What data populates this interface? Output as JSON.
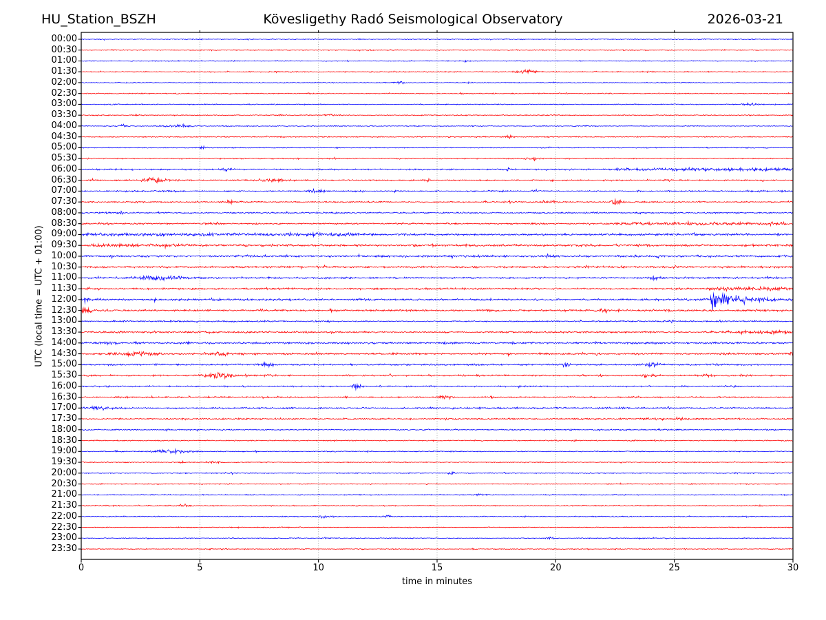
{
  "header": {
    "station": "HU_Station_BSZH",
    "observatory": "Kövesligethy Radó Seismological Observatory",
    "date": "2026-03-21"
  },
  "chart_data": {
    "type": "line",
    "subtype": "helicorder-seismogram-drum-record",
    "title": "HU_Station_BSZH — Kövesligethy Radó Seismological Observatory — 2026-03-21",
    "xlabel": "time in minutes",
    "ylabel": "UTC (local time = UTC + 01:00)",
    "x_ticks": [
      0,
      5,
      10,
      15,
      20,
      25,
      30
    ],
    "x_range": [
      0,
      30
    ],
    "grid": "dotted vertical gridlines at 5-minute intervals",
    "minutes_per_row": 30,
    "colors": {
      "even_row_trace": "#0000ff",
      "odd_row_trace": "#ff0000",
      "grid": "#999999",
      "frame": "#000000"
    },
    "rows": [
      {
        "time": "00:00",
        "color": "#0000ff",
        "noise": 1.0,
        "events": []
      },
      {
        "time": "00:30",
        "color": "#ff0000",
        "noise": 1.0,
        "events": []
      },
      {
        "time": "01:00",
        "color": "#0000ff",
        "noise": 0.9,
        "events": []
      },
      {
        "time": "01:30",
        "color": "#ff0000",
        "noise": 1.0,
        "events": [
          [
            18.3,
            19.3,
            2.6,
            "burst"
          ]
        ]
      },
      {
        "time": "02:00",
        "color": "#0000ff",
        "noise": 0.9,
        "events": [
          [
            13.1,
            13.7,
            1.6,
            "burst"
          ]
        ]
      },
      {
        "time": "02:30",
        "color": "#ff0000",
        "noise": 1.0,
        "events": []
      },
      {
        "time": "03:00",
        "color": "#0000ff",
        "noise": 0.9,
        "events": [
          [
            27.7,
            28.7,
            1.6,
            "burst"
          ]
        ]
      },
      {
        "time": "03:30",
        "color": "#ff0000",
        "noise": 1.0,
        "events": [
          [
            10.3,
            10.7,
            2.2,
            "burst"
          ]
        ]
      },
      {
        "time": "04:00",
        "color": "#0000ff",
        "noise": 0.9,
        "events": [
          [
            1.5,
            2.0,
            1.8,
            "burst"
          ],
          [
            3.5,
            4.8,
            2.4,
            "burst"
          ]
        ]
      },
      {
        "time": "04:30",
        "color": "#ff0000",
        "noise": 1.0,
        "events": [
          [
            17.8,
            18.3,
            2.0,
            "burst"
          ]
        ]
      },
      {
        "time": "05:00",
        "color": "#0000ff",
        "noise": 0.9,
        "events": [
          [
            5.0,
            5.4,
            1.6,
            "burst"
          ]
        ]
      },
      {
        "time": "05:30",
        "color": "#ff0000",
        "noise": 1.0,
        "events": [
          [
            18.7,
            19.4,
            2.2,
            "burst"
          ]
        ]
      },
      {
        "time": "06:00",
        "color": "#0000ff",
        "noise": 1.5,
        "events": [
          [
            5.8,
            6.4,
            2.2,
            "burst"
          ],
          [
            22.5,
            30,
            1.3,
            "sustained"
          ]
        ]
      },
      {
        "time": "06:30",
        "color": "#ff0000",
        "noise": 1.6,
        "events": [
          [
            2.4,
            3.7,
            3.0,
            "burst"
          ],
          [
            7.3,
            9.0,
            2.2,
            "burst"
          ]
        ]
      },
      {
        "time": "07:00",
        "color": "#0000ff",
        "noise": 1.5,
        "events": [
          [
            9.6,
            10.3,
            2.2,
            "burst"
          ]
        ]
      },
      {
        "time": "07:30",
        "color": "#ff0000",
        "noise": 1.5,
        "events": [
          [
            6.0,
            6.6,
            2.6,
            "burst"
          ],
          [
            19.4,
            20.1,
            2.2,
            "burst"
          ],
          [
            22.2,
            22.9,
            2.8,
            "burst"
          ]
        ]
      },
      {
        "time": "08:00",
        "color": "#0000ff",
        "noise": 1.5,
        "events": []
      },
      {
        "time": "08:30",
        "color": "#ff0000",
        "noise": 1.6,
        "events": [
          [
            22.3,
            30,
            1.2,
            "sustained"
          ]
        ]
      },
      {
        "time": "09:00",
        "color": "#0000ff",
        "noise": 2.2,
        "events": [
          [
            0.5,
            12,
            0.8,
            "sustained"
          ]
        ]
      },
      {
        "time": "09:30",
        "color": "#ff0000",
        "noise": 2.2,
        "events": [
          [
            0.5,
            4.5,
            0.9,
            "sustained"
          ]
        ]
      },
      {
        "time": "10:00",
        "color": "#0000ff",
        "noise": 2.0,
        "events": []
      },
      {
        "time": "10:30",
        "color": "#ff0000",
        "noise": 1.9,
        "events": []
      },
      {
        "time": "11:00",
        "color": "#0000ff",
        "noise": 1.8,
        "events": [
          [
            2.3,
            4.7,
            2.6,
            "burst"
          ],
          [
            23.9,
            24.5,
            2.0,
            "burst"
          ]
        ]
      },
      {
        "time": "11:30",
        "color": "#ff0000",
        "noise": 1.8,
        "events": [
          [
            26.5,
            30,
            1.6,
            "sustained"
          ]
        ]
      },
      {
        "time": "12:00",
        "color": "#0000ff",
        "noise": 2.0,
        "events": [
          [
            0,
            0.5,
            4.5,
            "decay"
          ],
          [
            26.55,
            30,
            13,
            "decay"
          ]
        ]
      },
      {
        "time": "12:30",
        "color": "#ff0000",
        "noise": 2.0,
        "events": [
          [
            0,
            1.3,
            3.8,
            "decay"
          ],
          [
            21.8,
            22.4,
            2.6,
            "burst"
          ]
        ]
      },
      {
        "time": "13:00",
        "color": "#0000ff",
        "noise": 1.4,
        "events": []
      },
      {
        "time": "13:30",
        "color": "#ff0000",
        "noise": 1.8,
        "events": [
          [
            27.4,
            30,
            1.4,
            "sustained"
          ]
        ]
      },
      {
        "time": "14:00",
        "color": "#0000ff",
        "noise": 1.9,
        "events": [
          [
            0.7,
            1.4,
            3.0,
            "burst"
          ]
        ]
      },
      {
        "time": "14:30",
        "color": "#ff0000",
        "noise": 1.8,
        "events": [
          [
            1.4,
            3.4,
            2.4,
            "burst"
          ],
          [
            5.4,
            6.3,
            2.0,
            "burst"
          ]
        ]
      },
      {
        "time": "15:00",
        "color": "#0000ff",
        "noise": 1.8,
        "events": [
          [
            7.5,
            8.1,
            3.0,
            "burst"
          ],
          [
            20.2,
            20.7,
            2.0,
            "burst"
          ],
          [
            23.7,
            24.5,
            2.6,
            "burst"
          ]
        ]
      },
      {
        "time": "15:30",
        "color": "#ff0000",
        "noise": 1.6,
        "events": [
          [
            5.1,
            6.7,
            3.4,
            "burst"
          ],
          [
            7.7,
            8.2,
            2.4,
            "burst"
          ],
          [
            23.5,
            24.3,
            2.4,
            "burst"
          ],
          [
            26.1,
            26.6,
            2.2,
            "burst"
          ]
        ]
      },
      {
        "time": "16:00",
        "color": "#0000ff",
        "noise": 1.4,
        "events": [
          [
            11.3,
            11.9,
            3.6,
            "burst"
          ]
        ]
      },
      {
        "time": "16:30",
        "color": "#ff0000",
        "noise": 1.5,
        "events": [
          [
            15.0,
            15.6,
            3.0,
            "burst"
          ]
        ]
      },
      {
        "time": "17:00",
        "color": "#0000ff",
        "noise": 1.5,
        "events": [
          [
            0.1,
            1.9,
            2.4,
            "burst"
          ]
        ]
      },
      {
        "time": "17:30",
        "color": "#ff0000",
        "noise": 1.5,
        "events": [
          [
            24.9,
            25.4,
            1.8,
            "burst"
          ]
        ]
      },
      {
        "time": "18:00",
        "color": "#0000ff",
        "noise": 1.2,
        "events": []
      },
      {
        "time": "18:30",
        "color": "#ff0000",
        "noise": 1.1,
        "events": []
      },
      {
        "time": "19:00",
        "color": "#0000ff",
        "noise": 1.0,
        "events": [
          [
            2.7,
            4.7,
            2.8,
            "burst"
          ]
        ]
      },
      {
        "time": "19:30",
        "color": "#ff0000",
        "noise": 1.0,
        "events": [
          [
            4.0,
            4.4,
            1.6,
            "burst"
          ],
          [
            5.3,
            5.9,
            1.8,
            "burst"
          ]
        ]
      },
      {
        "time": "20:00",
        "color": "#0000ff",
        "noise": 1.0,
        "events": [
          [
            15.4,
            15.8,
            1.4,
            "burst"
          ]
        ]
      },
      {
        "time": "20:30",
        "color": "#ff0000",
        "noise": 1.0,
        "events": []
      },
      {
        "time": "21:00",
        "color": "#0000ff",
        "noise": 1.0,
        "events": [
          [
            16.4,
            16.9,
            1.5,
            "burst"
          ]
        ]
      },
      {
        "time": "21:30",
        "color": "#ff0000",
        "noise": 1.0,
        "events": [
          [
            4.1,
            4.7,
            2.2,
            "burst"
          ]
        ]
      },
      {
        "time": "22:00",
        "color": "#0000ff",
        "noise": 1.0,
        "events": [
          [
            10.0,
            10.5,
            2.2,
            "burst"
          ],
          [
            12.7,
            13.1,
            1.6,
            "burst"
          ]
        ]
      },
      {
        "time": "22:30",
        "color": "#ff0000",
        "noise": 0.9,
        "events": []
      },
      {
        "time": "23:00",
        "color": "#0000ff",
        "noise": 0.9,
        "events": [
          [
            19.6,
            20.0,
            1.3,
            "burst"
          ]
        ]
      },
      {
        "time": "23:30",
        "color": "#ff0000",
        "noise": 0.9,
        "events": []
      }
    ]
  }
}
